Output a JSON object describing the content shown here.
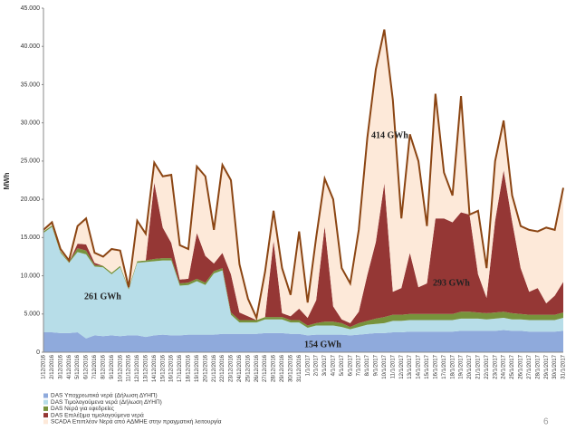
{
  "chart_data": {
    "type": "stacked_area",
    "ylabel": "MWh",
    "categories": [
      "1/12/2016",
      "2/12/2016",
      "3/12/2016",
      "4/12/2016",
      "5/12/2016",
      "6/12/2016",
      "7/12/2016",
      "8/12/2016",
      "9/12/2016",
      "10/12/2016",
      "11/12/2016",
      "12/12/2016",
      "13/12/2016",
      "14/12/2016",
      "15/12/2016",
      "16/12/2016",
      "17/12/2016",
      "18/12/2016",
      "19/12/2016",
      "20/12/2016",
      "21/12/2016",
      "22/12/2016",
      "23/12/2016",
      "24/12/2016",
      "25/12/2016",
      "26/12/2016",
      "27/12/2016",
      "28/12/2016",
      "29/12/2016",
      "30/12/2016",
      "31/12/2016",
      "1/1/2017",
      "2/1/2017",
      "3/1/2017",
      "4/1/2017",
      "5/1/2017",
      "6/1/2017",
      "7/1/2017",
      "8/1/2017",
      "9/1/2017",
      "10/1/2017",
      "11/1/2017",
      "12/1/2017",
      "13/1/2017",
      "14/1/2017",
      "15/1/2017",
      "16/1/2017",
      "17/1/2017",
      "18/1/2017",
      "19/1/2017",
      "20/1/2017",
      "21/1/2017",
      "22/1/2017",
      "23/1/2017",
      "24/1/2017",
      "25/1/2017",
      "26/1/2017",
      "27/1/2017",
      "28/1/2017",
      "29/1/2017",
      "30/1/2017",
      "31/1/2017"
    ],
    "series": [
      {
        "name": "DAS Υποχρεωτικά νερά (Δήλωση ΔΥΗΠ)",
        "color": "#8faadc",
        "values": [
          2600,
          2600,
          2500,
          2500,
          2600,
          1800,
          2200,
          2100,
          2200,
          2100,
          2200,
          2200,
          2000,
          2200,
          2300,
          2200,
          2200,
          2300,
          2300,
          2300,
          2300,
          2400,
          2400,
          2400,
          2400,
          2400,
          2500,
          2500,
          2500,
          2400,
          2400,
          2200,
          2300,
          2300,
          2300,
          2300,
          2200,
          2300,
          2400,
          2500,
          2500,
          2600,
          2600,
          2700,
          2700,
          2700,
          2700,
          2700,
          2700,
          2800,
          2800,
          2800,
          2800,
          2800,
          2900,
          2800,
          2800,
          2700,
          2700,
          2700,
          2700,
          2800
        ]
      },
      {
        "name": "DAS Τιμολογούμενα νερά (Δήλωση ΔΥΗΠ)",
        "color": "#b7dde8",
        "values": [
          13000,
          13800,
          10500,
          9200,
          10500,
          11000,
          9000,
          9000,
          8000,
          9000,
          6000,
          9500,
          9800,
          9700,
          9700,
          9800,
          6500,
          6500,
          7000,
          6500,
          8000,
          8300,
          2500,
          1500,
          1500,
          1500,
          1800,
          1800,
          1800,
          1500,
          1500,
          1000,
          1200,
          1200,
          1200,
          1000,
          800,
          1000,
          1200,
          1200,
          1300,
          1500,
          1500,
          1500,
          1500,
          1500,
          1500,
          1500,
          1500,
          1600,
          1600,
          1600,
          1500,
          1600,
          1600,
          1500,
          1500,
          1500,
          1500,
          1500,
          1500,
          1700
        ]
      },
      {
        "name": "DAS Νερά για εφεδρείες",
        "color": "#77933c",
        "values": [
          200,
          200,
          200,
          100,
          500,
          500,
          200,
          200,
          200,
          200,
          200,
          200,
          200,
          300,
          300,
          300,
          300,
          300,
          300,
          300,
          300,
          300,
          300,
          300,
          300,
          300,
          300,
          300,
          300,
          300,
          300,
          300,
          300,
          500,
          500,
          500,
          300,
          500,
          500,
          700,
          800,
          800,
          800,
          800,
          800,
          800,
          800,
          800,
          800,
          900,
          900,
          800,
          800,
          800,
          800,
          800,
          700,
          700,
          700,
          700,
          700,
          700
        ]
      },
      {
        "name": "DAS Επιλέξιμα τιμολογούμενα νερά",
        "color": "#953735",
        "values": [
          0,
          0,
          0,
          0,
          600,
          800,
          300,
          0,
          0,
          0,
          0,
          0,
          0,
          10000,
          4000,
          2000,
          500,
          500,
          6000,
          3500,
          1000,
          2000,
          5000,
          1000,
          500,
          0,
          0,
          10000,
          500,
          500,
          1500,
          1000,
          3000,
          12500,
          2000,
          500,
          500,
          1500,
          6000,
          10000,
          17500,
          3000,
          3500,
          8000,
          3500,
          4000,
          12500,
          12500,
          12000,
          13000,
          12700,
          5000,
          2000,
          12000,
          18500,
          12000,
          6000,
          3000,
          3500,
          1500,
          2500,
          4000
        ]
      },
      {
        "name": "SCADA Επιπλέον Νερά από ΑΔΜΗΕ στην πραγματική λειτουργία",
        "color": "#fde9d9",
        "values": [
          200,
          400,
          300,
          200,
          2300,
          3400,
          1300,
          1200,
          3100,
          2000,
          100,
          5300,
          3500,
          2600,
          6700,
          8900,
          4500,
          3900,
          8700,
          10400,
          4400,
          11500,
          12300,
          6300,
          2300,
          300,
          5900,
          3900,
          5900,
          2800,
          10100,
          2000,
          8200,
          6200,
          14000,
          6700,
          5200,
          10700,
          17900,
          22600,
          20100,
          25100,
          9100,
          15500,
          16500,
          7500,
          16300,
          6000,
          3500,
          15200,
          0,
          8300,
          3900,
          7800,
          6500,
          3400,
          5500,
          8100,
          7400,
          9900,
          8600,
          12300
        ]
      }
    ],
    "outline_color": "#8b4513",
    "ylim": [
      0,
      45000
    ],
    "yticks": [
      {
        "value": 0,
        "label": "0"
      },
      {
        "value": 5000,
        "label": "5.000"
      },
      {
        "value": 10000,
        "label": "10.000"
      },
      {
        "value": 15000,
        "label": "15.000"
      },
      {
        "value": 20000,
        "label": "20.000"
      },
      {
        "value": 25000,
        "label": "25.000"
      },
      {
        "value": 30000,
        "label": "30.000"
      },
      {
        "value": 35000,
        "label": "35.000"
      },
      {
        "value": 40000,
        "label": "40.000"
      },
      {
        "value": 45000,
        "label": "45.000"
      }
    ],
    "annotations": [
      "261 GWh",
      "414 GWh",
      "293 GWh",
      "154 GWh"
    ],
    "page_number": "6"
  }
}
